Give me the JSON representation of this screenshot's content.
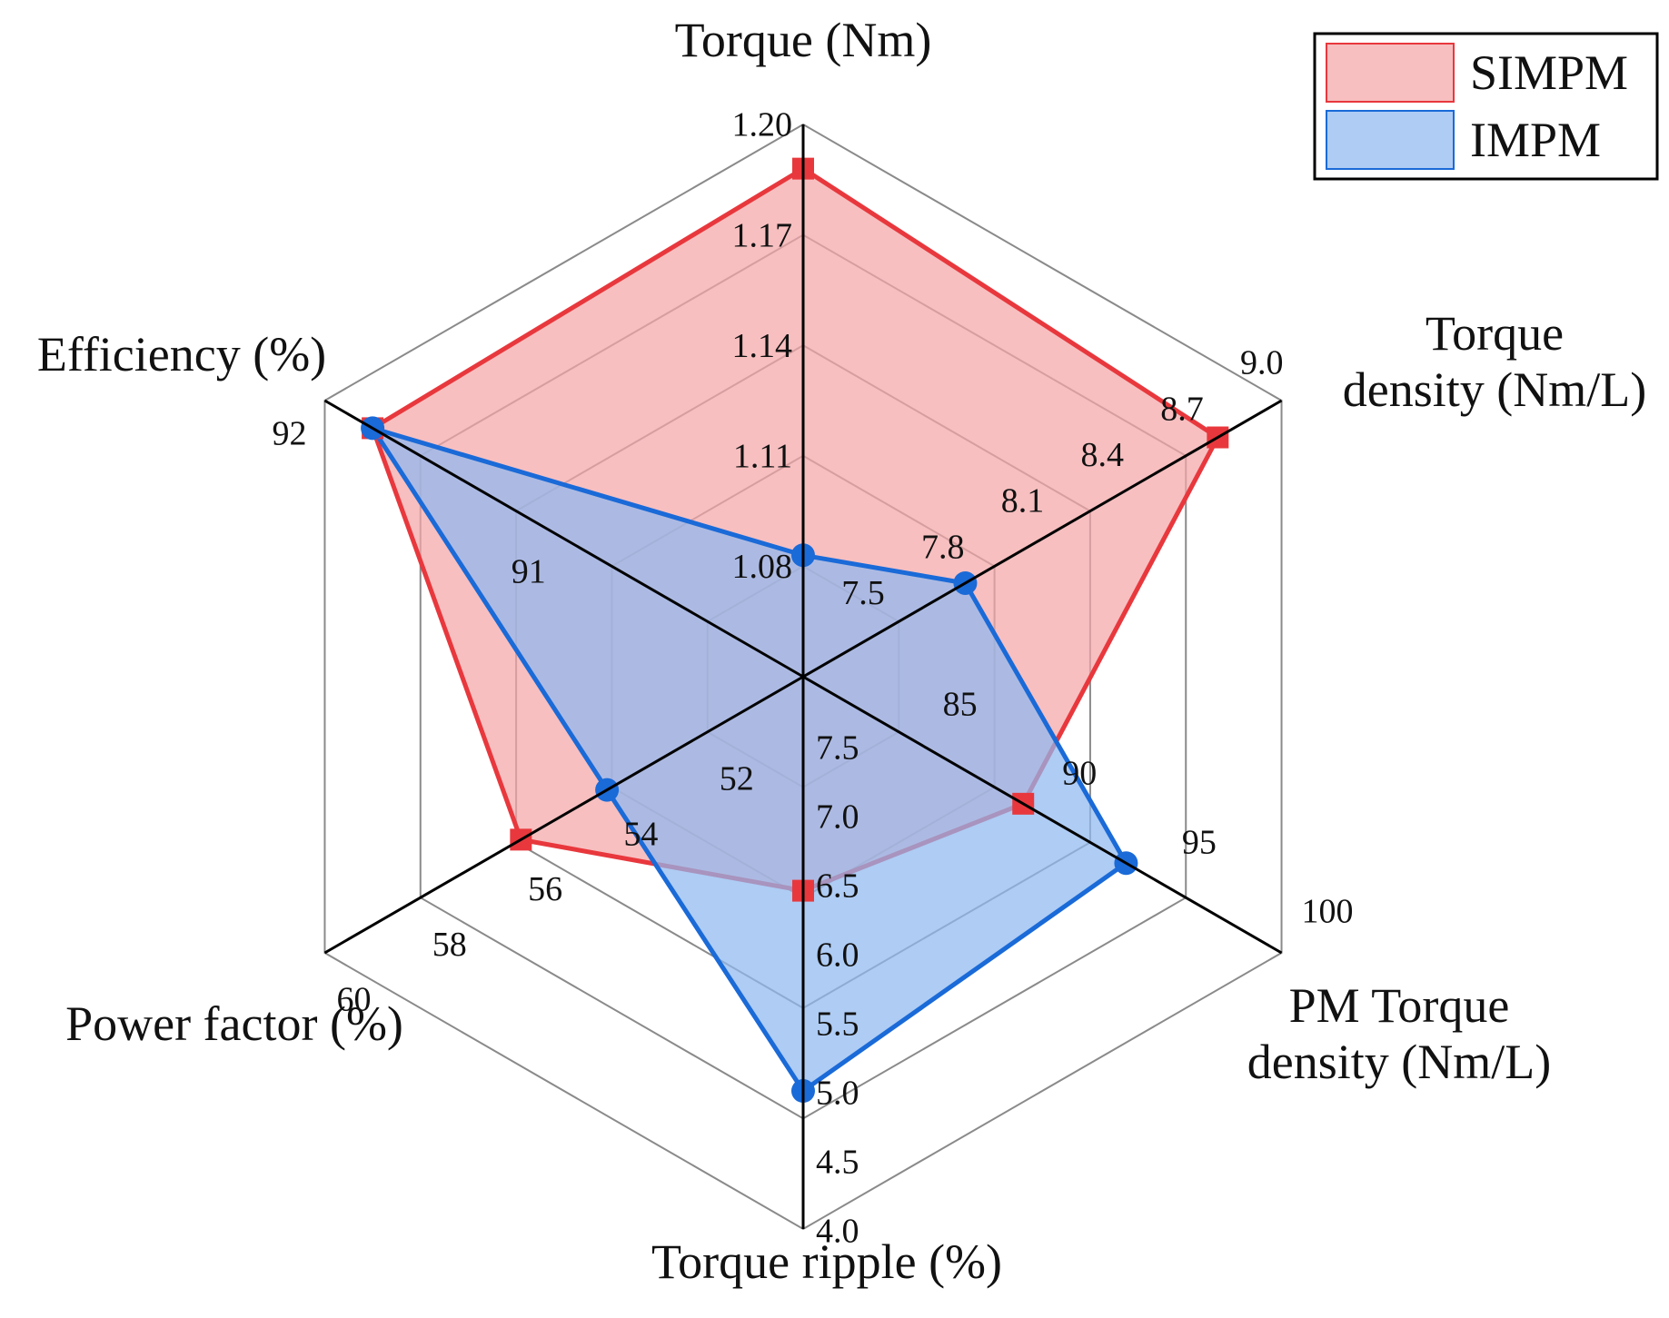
{
  "chart_data": {
    "type": "radar",
    "axes": [
      {
        "key": "torque",
        "label": [
          "Torque (Nm)"
        ],
        "ticks": [
          "1.08",
          "1.11",
          "1.14",
          "1.17",
          "1.20"
        ],
        "min": 1.05,
        "max": 1.2
      },
      {
        "key": "torque_density",
        "label": [
          "Torque",
          "density (Nm/L)"
        ],
        "ticks": [
          "7.5",
          "7.8",
          "8.1",
          "8.4",
          "8.7",
          "9.0"
        ],
        "min": 7.2,
        "max": 9.0
      },
      {
        "key": "pm_torque_density",
        "label": [
          "PM Torque",
          "density (Nm/L)"
        ],
        "ticks": [
          "85",
          "90",
          "95",
          "100"
        ],
        "min": 80,
        "max": 100
      },
      {
        "key": "torque_ripple",
        "label": [
          "Torque ripple (%)"
        ],
        "ticks": [
          "7.5",
          "7.0",
          "6.5",
          "6.0",
          "5.5",
          "5.0",
          "4.5",
          "4.0"
        ],
        "min": 8.0,
        "max": 4.0
      },
      {
        "key": "power_factor",
        "label": [
          "Power factor (%)"
        ],
        "ticks": [
          "52",
          "54",
          "56",
          "58",
          "60"
        ],
        "min": 50,
        "max": 60
      },
      {
        "key": "efficiency",
        "label": [
          "Efficiency (%)"
        ],
        "ticks": [
          "91",
          "92"
        ],
        "min": 90,
        "max": 92
      }
    ],
    "series": [
      {
        "name": "SIMPM",
        "color": "#e8383d",
        "fill": "#f4a6a8",
        "marker": "square",
        "values": [
          1.188,
          8.76,
          89.2,
          6.45,
          55.9,
          91.8
        ]
      },
      {
        "name": "IMPM",
        "color": "#1a6ad8",
        "fill": "#8fb8f0",
        "marker": "circle",
        "values": [
          1.083,
          7.81,
          93.5,
          5.0,
          54.1,
          91.8
        ]
      }
    ],
    "legend": {
      "position": "top-right",
      "entries": [
        "SIMPM",
        "IMPM"
      ]
    },
    "grid": true
  }
}
